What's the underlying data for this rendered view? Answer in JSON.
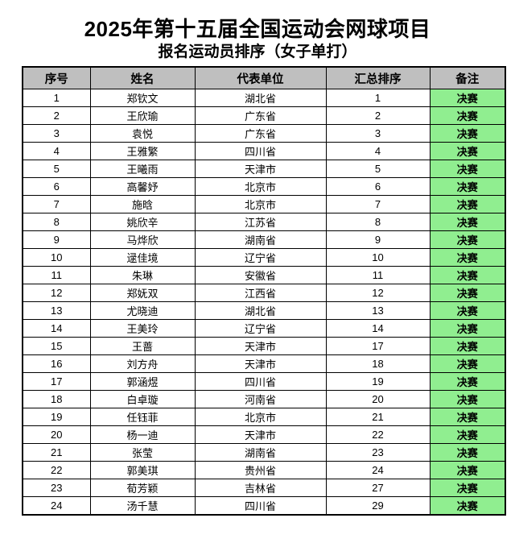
{
  "title": "2025年第十五届全国运动会网球项目",
  "subtitle": "报名运动员排序（女子单打）",
  "colors": {
    "header_bg": "#BFBFBF",
    "note_bg": "#90EE90",
    "border": "#000000",
    "text": "#000000"
  },
  "table": {
    "headers": [
      "序号",
      "姓名",
      "代表单位",
      "汇总排序",
      "备注"
    ],
    "rows": [
      [
        "1",
        "郑钦文",
        "湖北省",
        "1",
        "决赛"
      ],
      [
        "2",
        "王欣瑜",
        "广东省",
        "2",
        "决赛"
      ],
      [
        "3",
        "袁悦",
        "广东省",
        "3",
        "决赛"
      ],
      [
        "4",
        "王雅繁",
        "四川省",
        "4",
        "决赛"
      ],
      [
        "5",
        "王曦雨",
        "天津市",
        "5",
        "决赛"
      ],
      [
        "6",
        "高馨妤",
        "北京市",
        "6",
        "决赛"
      ],
      [
        "7",
        "施晗",
        "北京市",
        "7",
        "决赛"
      ],
      [
        "8",
        "姚欣辛",
        "江苏省",
        "8",
        "决赛"
      ],
      [
        "9",
        "马烨欣",
        "湖南省",
        "9",
        "决赛"
      ],
      [
        "10",
        "逯佳境",
        "辽宁省",
        "10",
        "决赛"
      ],
      [
        "11",
        "朱琳",
        "安徽省",
        "11",
        "决赛"
      ],
      [
        "12",
        "郑妩双",
        "江西省",
        "12",
        "决赛"
      ],
      [
        "13",
        "尤晓迪",
        "湖北省",
        "13",
        "决赛"
      ],
      [
        "14",
        "王美玲",
        "辽宁省",
        "14",
        "决赛"
      ],
      [
        "15",
        "王蔷",
        "天津市",
        "17",
        "决赛"
      ],
      [
        "16",
        "刘方舟",
        "天津市",
        "18",
        "决赛"
      ],
      [
        "17",
        "郭涵煜",
        "四川省",
        "19",
        "决赛"
      ],
      [
        "18",
        "白卓璇",
        "河南省",
        "20",
        "决赛"
      ],
      [
        "19",
        "任钰菲",
        "北京市",
        "21",
        "决赛"
      ],
      [
        "20",
        "杨一迪",
        "天津市",
        "22",
        "决赛"
      ],
      [
        "21",
        "张莹",
        "湖南省",
        "23",
        "决赛"
      ],
      [
        "22",
        "郭美琪",
        "贵州省",
        "24",
        "决赛"
      ],
      [
        "23",
        "荀芳颖",
        "吉林省",
        "27",
        "决赛"
      ],
      [
        "24",
        "汤千慧",
        "四川省",
        "29",
        "决赛"
      ]
    ]
  }
}
